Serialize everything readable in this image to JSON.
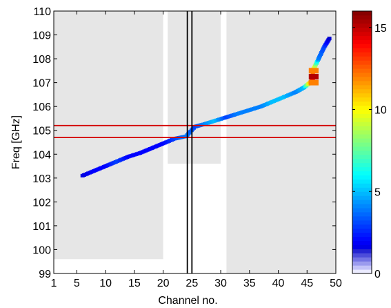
{
  "chart_data": {
    "type": "heatmap",
    "title": "",
    "xlabel": "Channel no.",
    "ylabel": "Freq [GHz]",
    "xlim": [
      1,
      50
    ],
    "ylim": [
      99,
      110
    ],
    "x_ticks": [
      1,
      5,
      10,
      15,
      20,
      25,
      30,
      35,
      40,
      45,
      50
    ],
    "y_ticks": [
      99,
      100,
      101,
      102,
      103,
      104,
      105,
      106,
      107,
      108,
      109,
      110
    ],
    "grid": false,
    "shaded_regions": [
      {
        "x": [
          1,
          20
        ],
        "y": [
          99.6,
          110
        ]
      },
      {
        "x": [
          20.8,
          30
        ],
        "y": [
          103.6,
          110
        ]
      },
      {
        "x": [
          31,
          50
        ],
        "y": [
          99,
          110
        ]
      }
    ],
    "horizontal_lines": [
      {
        "y": 105.2,
        "color": "#d40000"
      },
      {
        "y": 104.7,
        "color": "#d40000"
      }
    ],
    "vertical_lines": [
      {
        "x": 24.2,
        "color": "#000000"
      },
      {
        "x": 25.0,
        "color": "#000000"
      }
    ],
    "trace": [
      {
        "x": 6,
        "y": 103.1,
        "v": 1.5
      },
      {
        "x": 8,
        "y": 103.3,
        "v": 2
      },
      {
        "x": 10,
        "y": 103.5,
        "v": 2
      },
      {
        "x": 12,
        "y": 103.7,
        "v": 3
      },
      {
        "x": 14,
        "y": 103.9,
        "v": 2
      },
      {
        "x": 16,
        "y": 104.05,
        "v": 2
      },
      {
        "x": 18,
        "y": 104.25,
        "v": 2
      },
      {
        "x": 20,
        "y": 104.45,
        "v": 2
      },
      {
        "x": 22,
        "y": 104.65,
        "v": 3
      },
      {
        "x": 24,
        "y": 104.75,
        "v": 4
      },
      {
        "x": 25.5,
        "y": 105.15,
        "v": 3
      },
      {
        "x": 27,
        "y": 105.25,
        "v": 4
      },
      {
        "x": 29,
        "y": 105.4,
        "v": 5
      },
      {
        "x": 31,
        "y": 105.55,
        "v": 3
      },
      {
        "x": 33,
        "y": 105.7,
        "v": 4
      },
      {
        "x": 35,
        "y": 105.85,
        "v": 4
      },
      {
        "x": 37,
        "y": 106.0,
        "v": 4
      },
      {
        "x": 39,
        "y": 106.2,
        "v": 5
      },
      {
        "x": 41,
        "y": 106.4,
        "v": 5
      },
      {
        "x": 43,
        "y": 106.6,
        "v": 4
      },
      {
        "x": 44.5,
        "y": 106.8,
        "v": 5
      },
      {
        "x": 46,
        "y": 107.1,
        "v": 14
      },
      {
        "x": 46,
        "y": 107.5,
        "v": 12
      },
      {
        "x": 47,
        "y": 108.0,
        "v": 4
      },
      {
        "x": 48,
        "y": 108.5,
        "v": 3
      },
      {
        "x": 49,
        "y": 108.9,
        "v": 1
      }
    ],
    "colorbar": {
      "range": [
        0,
        16
      ],
      "ticks": [
        0,
        5,
        10,
        15
      ],
      "colormap": "jet"
    }
  }
}
